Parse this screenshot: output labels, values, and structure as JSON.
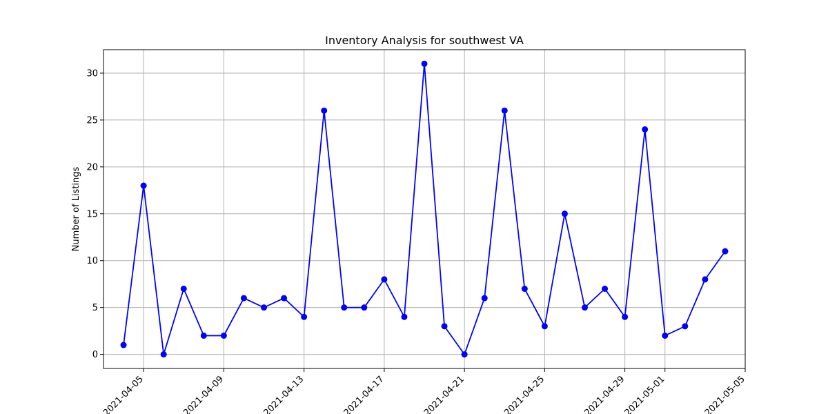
{
  "chart_data": {
    "type": "line",
    "title": "Inventory Analysis for southwest VA",
    "xlabel": "",
    "ylabel": "Number of Listings",
    "grid": true,
    "legend": "none",
    "series_color": "#0000ff",
    "x_ticks": [
      "2021-04-05",
      "2021-04-09",
      "2021-04-13",
      "2021-04-17",
      "2021-04-21",
      "2021-04-25",
      "2021-04-29",
      "2021-05-01",
      "2021-05-05"
    ],
    "xlim": [
      "2021-04-03",
      "2021-05-05"
    ],
    "ylim": [
      -1.5,
      32.5
    ],
    "y_ticks": [
      0,
      5,
      10,
      15,
      20,
      25,
      30
    ],
    "x": [
      "2021-04-04",
      "2021-04-05",
      "2021-04-06",
      "2021-04-07",
      "2021-04-08",
      "2021-04-09",
      "2021-04-10",
      "2021-04-11",
      "2021-04-12",
      "2021-04-13",
      "2021-04-14",
      "2021-04-15",
      "2021-04-16",
      "2021-04-17",
      "2021-04-18",
      "2021-04-19",
      "2021-04-20",
      "2021-04-21",
      "2021-04-22",
      "2021-04-23",
      "2021-04-24",
      "2021-04-25",
      "2021-04-26",
      "2021-04-27",
      "2021-04-28",
      "2021-04-29",
      "2021-04-30",
      "2021-05-01",
      "2021-05-02",
      "2021-05-03",
      "2021-05-04"
    ],
    "values": [
      1,
      18,
      0,
      7,
      2,
      2,
      6,
      5,
      6,
      4,
      26,
      5,
      5,
      8,
      4,
      31,
      3,
      0,
      6,
      26,
      7,
      3,
      15,
      5,
      7,
      4,
      24,
      2,
      3,
      8,
      11
    ]
  }
}
